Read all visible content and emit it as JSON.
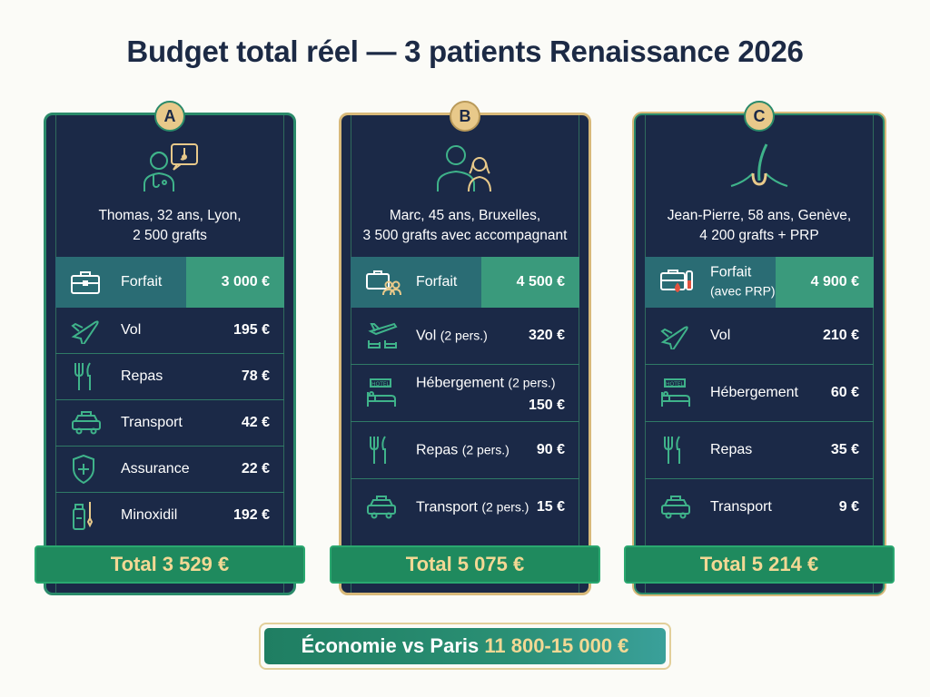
{
  "title": "Budget total réel — 3 patients Renaissance 2026",
  "colors": {
    "card_bg": "#1b2947",
    "accent_green": "#2a8a6a",
    "gold": "#e8c98a",
    "total_text": "#f2d894"
  },
  "cards": [
    {
      "badge": "A",
      "icon": "doctor-with-speech-bubble-icon",
      "desc_line1": "Thomas, 32 ans, Lyon,",
      "desc_line2": "2 500 grafts",
      "rows": [
        {
          "icon": "briefcase-icon",
          "label": "Forfait",
          "value": "3 000 €"
        },
        {
          "icon": "plane-icon",
          "label": "Vol",
          "value": "195 €"
        },
        {
          "icon": "fork-knife-icon",
          "label": "Repas",
          "value": "78 €"
        },
        {
          "icon": "taxi-icon",
          "label": "Transport",
          "value": "42 €"
        },
        {
          "icon": "shield-cross-icon",
          "label": "Assurance",
          "value": "22 €"
        },
        {
          "icon": "medicine-bottle-icon",
          "label": "Minoxidil",
          "value": "192 €"
        }
      ],
      "total": "Total 3 529 €"
    },
    {
      "badge": "B",
      "icon": "two-people-icon",
      "desc_line1": "Marc, 45 ans, Bruxelles,",
      "desc_line2": "3 500 grafts avec accompagnant",
      "rows": [
        {
          "icon": "briefcase-people-icon",
          "label": "Forfait",
          "small": "",
          "value": "4 500 €"
        },
        {
          "icon": "plane-seats-icon",
          "label": "Vol",
          "small": "(2 pers.)",
          "value": "320 €"
        },
        {
          "icon": "hotel-bed-icon",
          "label": "Hébergement",
          "small": "(2 pers.)",
          "value": "150 €"
        },
        {
          "icon": "fork-knife-icon",
          "label": "Repas",
          "small": "(2 pers.)",
          "value": "90 €"
        },
        {
          "icon": "taxi-icon",
          "label": "Transport",
          "small": "(2 pers.)",
          "value": "15 €"
        }
      ],
      "total": "Total 5 075 €"
    },
    {
      "badge": "C",
      "icon": "hair-follicle-icon",
      "desc_line1": "Jean-Pierre, 58 ans, Genève,",
      "desc_line2": "4 200 grafts + PRP",
      "rows": [
        {
          "icon": "briefcase-blood-icon",
          "label": "Forfait",
          "small": "(avec PRP)",
          "value": "4 900 €"
        },
        {
          "icon": "plane-icon",
          "label": "Vol",
          "value": "210 €"
        },
        {
          "icon": "hotel-bed-icon",
          "label": "Hébergement",
          "value": "60 €"
        },
        {
          "icon": "fork-knife-icon",
          "label": "Repas",
          "value": "35 €"
        },
        {
          "icon": "taxi-icon",
          "label": "Transport",
          "value": "9 €"
        }
      ],
      "total": "Total 5 214 €"
    }
  ],
  "savings": {
    "label": "Économie vs Paris",
    "amount": "11 800-15 000 €"
  }
}
